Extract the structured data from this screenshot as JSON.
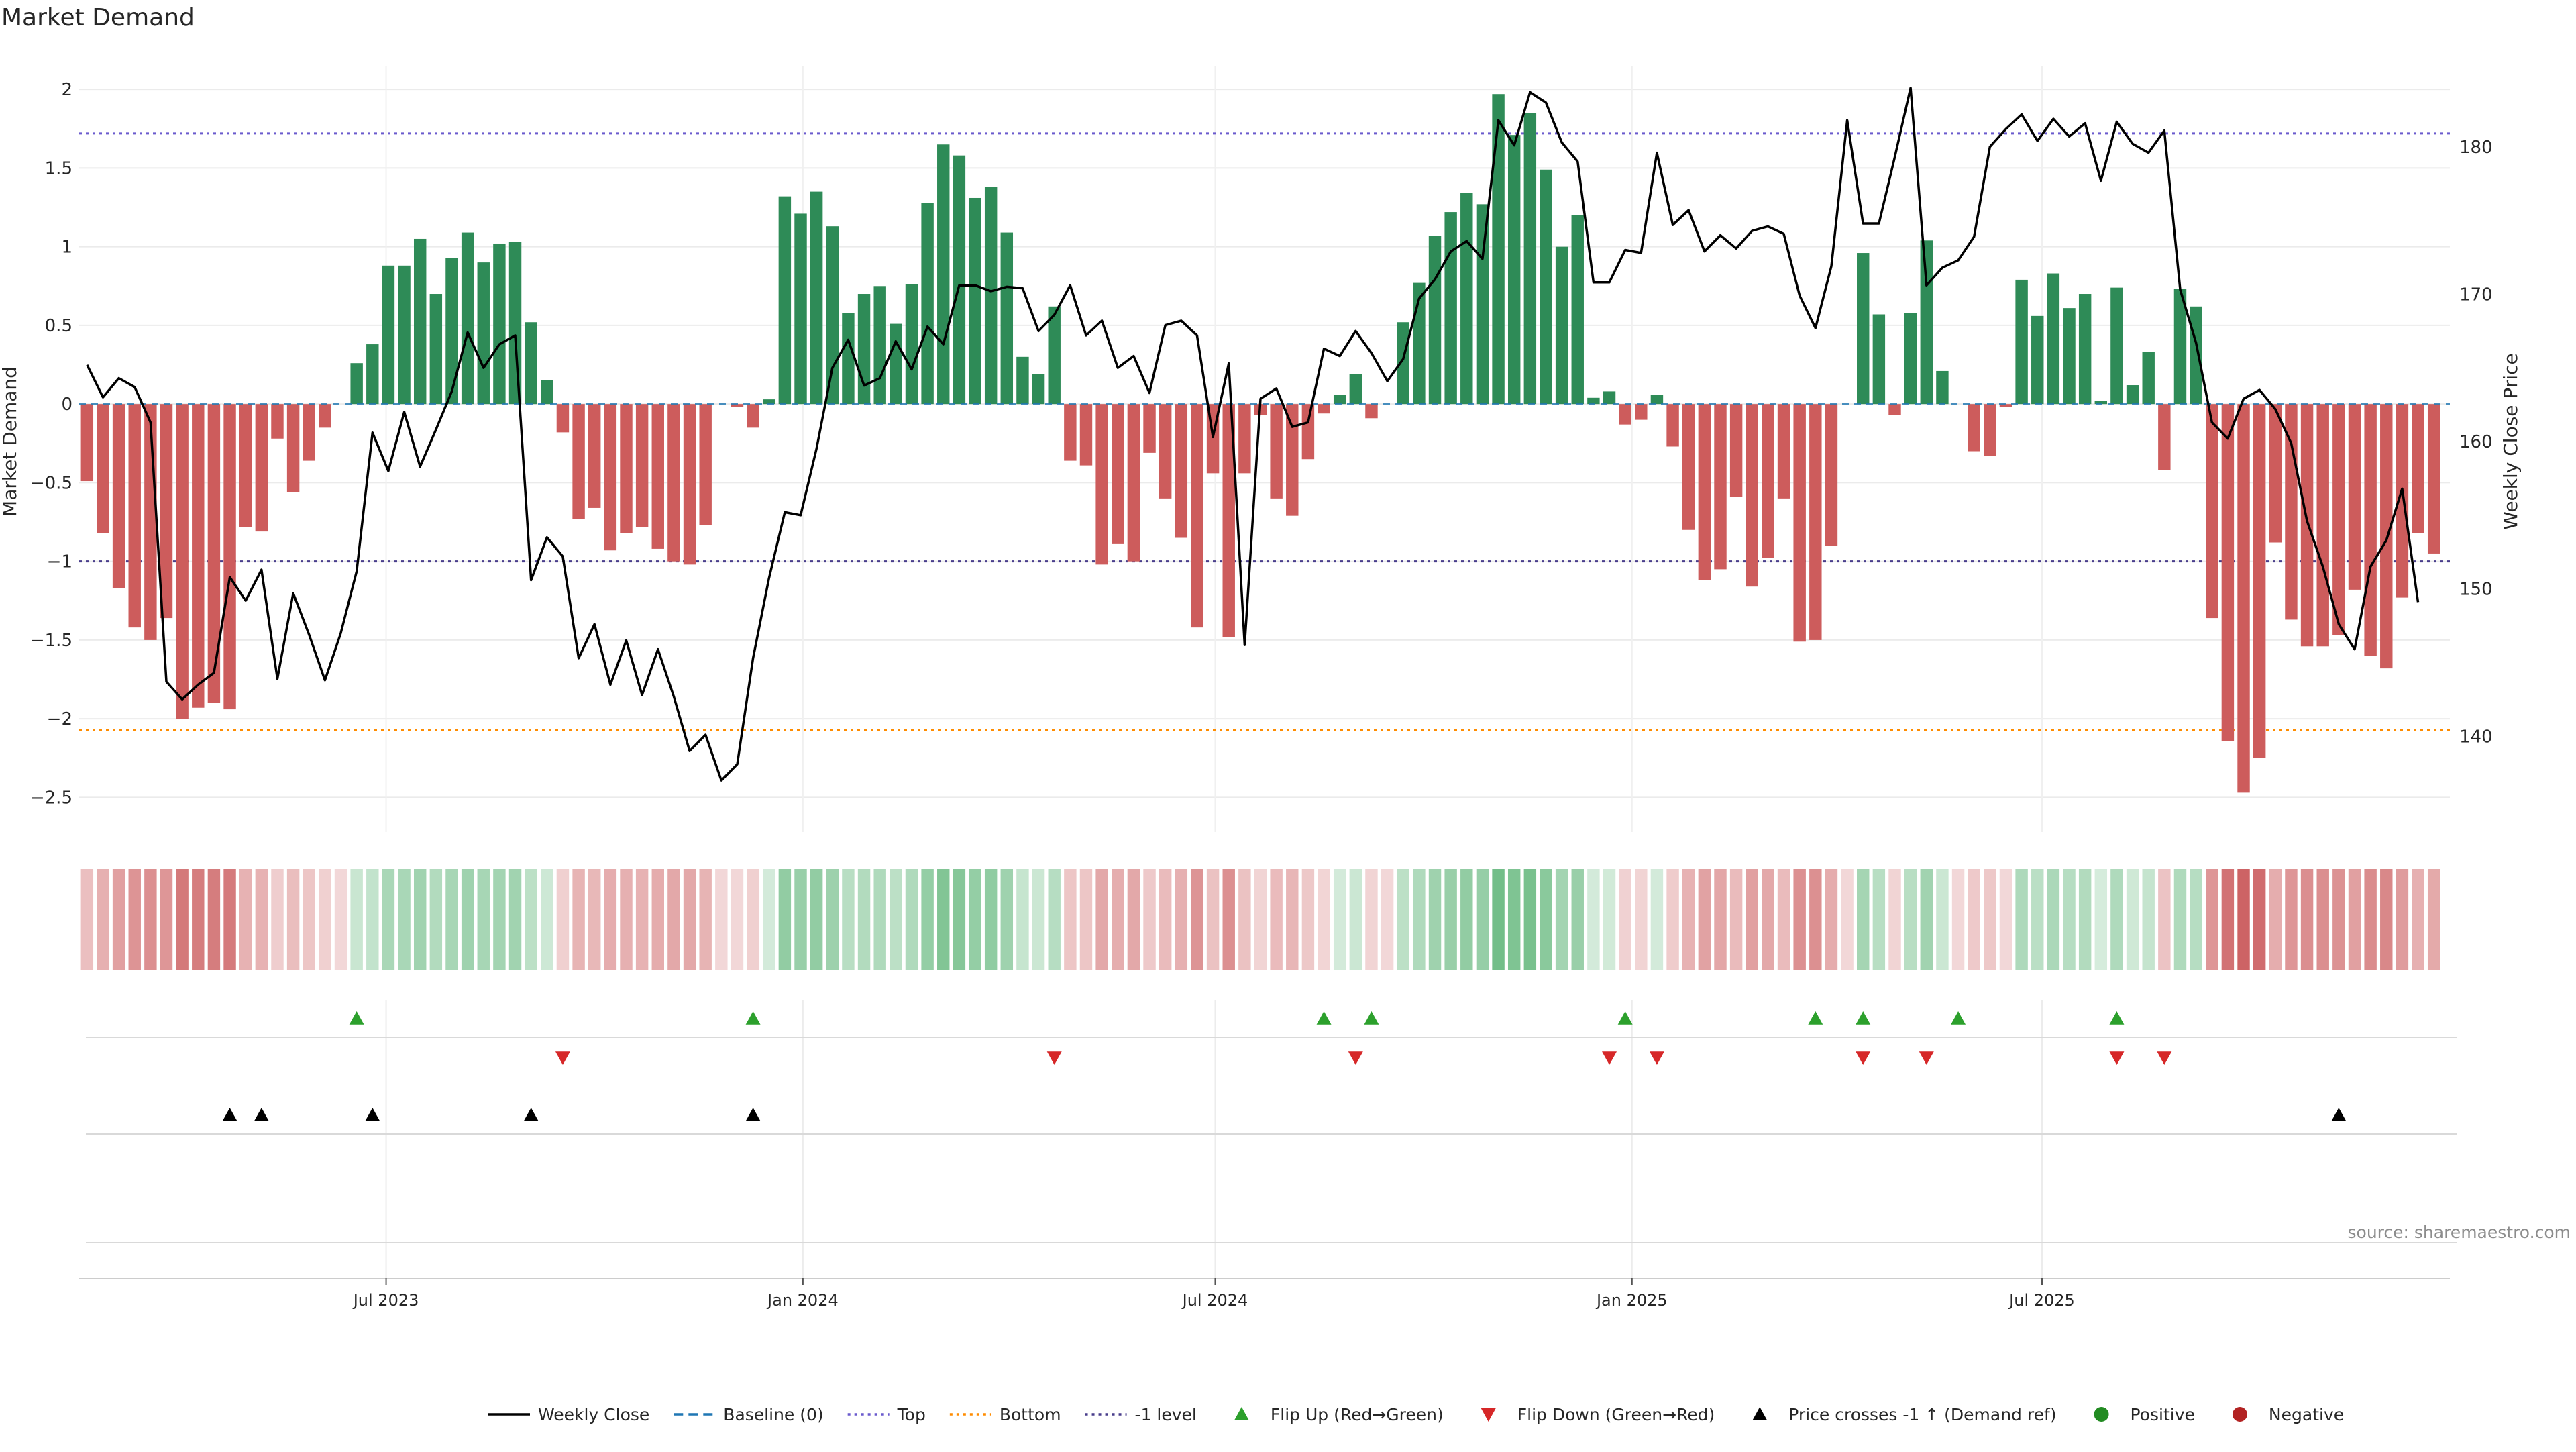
{
  "title": "Market Demand",
  "source": "source: sharemaestro.com",
  "colors": {
    "positive": "#2e8b57",
    "negative": "#cd5c5c",
    "price": "#000000",
    "baseline": "#1f77b4",
    "top": "#6a5acd",
    "bottom": "#ff8c00",
    "minus1": "#483d8b",
    "flip_up": "#2ca02c",
    "flip_down": "#d62728"
  },
  "chart_data": {
    "type": "bar",
    "x_axis": {
      "start": "2023-02-19",
      "interval": "weekly",
      "tick_labels": [
        "Jul 2023",
        "Jan 2024",
        "Jul 2024",
        "Jan 2025",
        "Jul 2025"
      ],
      "tick_dates": [
        "2023-07-01",
        "2024-01-01",
        "2024-07-01",
        "2025-01-01",
        "2025-07-01"
      ]
    },
    "left_axis": {
      "label": "Market Demand",
      "ylim": [
        -2.72,
        2.15
      ],
      "ticks": [
        2,
        1.5,
        1,
        0.5,
        0,
        -0.5,
        -1,
        -1.5,
        -2,
        -2.5
      ],
      "tick_labels": [
        "2",
        "1.5",
        "1",
        "0.5",
        "0",
        "−0.5",
        "−1",
        "−1.5",
        "−2",
        "−2.5"
      ]
    },
    "right_axis": {
      "label": "Weekly Close Price",
      "ylim": [
        133.5,
        185.5
      ],
      "ticks": [
        180,
        170,
        160,
        150,
        140
      ],
      "tick_labels": [
        "180",
        "170",
        "160",
        "150",
        "140"
      ]
    },
    "levels": {
      "top": 1.72,
      "bottom": -2.07,
      "minus1": -1.0,
      "baseline": 0
    },
    "series": [
      {
        "name": "Market Demand",
        "type": "bar",
        "values": [
          -0.49,
          -0.82,
          -1.17,
          -1.42,
          -1.5,
          -1.36,
          -2.0,
          -1.93,
          -1.9,
          -1.94,
          -0.78,
          -0.81,
          -0.22,
          -0.56,
          -0.36,
          -0.15,
          0.0,
          0.26,
          0.38,
          0.88,
          0.88,
          1.05,
          0.7,
          0.93,
          1.09,
          0.9,
          1.02,
          1.03,
          0.52,
          0.15,
          -0.18,
          -0.73,
          -0.66,
          -0.93,
          -0.82,
          -0.78,
          -0.92,
          -1.0,
          -1.02,
          -0.77,
          0.0,
          -0.02,
          -0.15,
          0.03,
          1.32,
          1.21,
          1.35,
          1.13,
          0.58,
          0.7,
          0.75,
          0.51,
          0.76,
          1.28,
          1.65,
          1.58,
          1.31,
          1.38,
          1.09,
          0.3,
          0.19,
          0.62,
          -0.36,
          -0.39,
          -1.02,
          -0.89,
          -1.0,
          -0.31,
          -0.6,
          -0.85,
          -1.42,
          -0.44,
          -1.48,
          -0.44,
          -0.07,
          -0.6,
          -0.71,
          -0.35,
          -0.06,
          0.06,
          0.19,
          -0.09,
          0.0,
          0.52,
          0.77,
          1.07,
          1.22,
          1.34,
          1.27,
          1.97,
          1.71,
          1.85,
          1.49,
          1.0,
          1.2,
          0.04,
          0.08,
          -0.13,
          -0.1,
          0.06,
          -0.27,
          -0.8,
          -1.12,
          -1.05,
          -0.59,
          -1.16,
          -0.98,
          -0.6,
          -1.51,
          -1.5,
          -0.9,
          0.0,
          0.96,
          0.57,
          -0.07,
          0.58,
          1.04,
          0.21,
          0.0,
          -0.3,
          -0.33,
          -0.02,
          0.79,
          0.56,
          0.83,
          0.61,
          0.7,
          0.02,
          0.74,
          0.12,
          0.33,
          -0.42,
          0.73,
          0.62,
          -1.36,
          -2.14,
          -2.47,
          -2.25,
          -0.88,
          -1.37,
          -1.54,
          -1.54,
          -1.47,
          -1.18,
          -1.6,
          -1.68,
          -1.23,
          -0.82,
          -0.95
        ]
      },
      {
        "name": "Weekly Close",
        "type": "line",
        "values": [
          165.2,
          163.0,
          164.3,
          163.7,
          161.3,
          143.7,
          142.5,
          143.5,
          144.3,
          150.8,
          149.2,
          151.3,
          143.9,
          149.7,
          146.9,
          143.8,
          147.0,
          151.2,
          160.6,
          158.0,
          162.0,
          158.3,
          160.8,
          163.4,
          167.4,
          165.0,
          166.6,
          167.2,
          150.6,
          153.5,
          152.2,
          145.3,
          147.6,
          143.5,
          146.5,
          142.8,
          145.9,
          142.7,
          139.0,
          140.1,
          137.0,
          138.1,
          145.3,
          150.7,
          155.2,
          155.0,
          159.5,
          165.0,
          166.9,
          163.8,
          164.3,
          166.8,
          164.9,
          167.8,
          166.6,
          170.6,
          170.6,
          170.2,
          170.5,
          170.4,
          167.5,
          168.6,
          170.6,
          167.2,
          168.2,
          165.0,
          165.8,
          163.3,
          167.9,
          168.2,
          167.2,
          160.3,
          165.3,
          146.2,
          162.9,
          163.6,
          161.0,
          161.3,
          166.3,
          165.8,
          167.5,
          166.0,
          164.1,
          165.6,
          169.7,
          171.0,
          172.9,
          173.6,
          172.4,
          181.8,
          180.1,
          183.7,
          183.0,
          180.3,
          179.0,
          170.8,
          170.8,
          173.0,
          172.8,
          179.6,
          174.7,
          175.7,
          172.9,
          174.0,
          173.1,
          174.3,
          174.6,
          174.1,
          169.9,
          167.7,
          171.9,
          181.8,
          174.8,
          174.8,
          179.3,
          184.0,
          170.6,
          171.8,
          172.3,
          173.9,
          180.0,
          181.2,
          182.2,
          180.4,
          181.9,
          180.7,
          181.6,
          177.7,
          181.7,
          180.2,
          179.6,
          181.1,
          170.3,
          166.7,
          161.3,
          160.2,
          162.9,
          163.5,
          162.2,
          159.9,
          154.6,
          151.5,
          147.6,
          145.9,
          151.5,
          153.3,
          156.8,
          149.1
        ]
      }
    ],
    "flip_up_indices": [
      17,
      42,
      78,
      81,
      97,
      109,
      112,
      118,
      128
    ],
    "flip_down_indices": [
      30,
      61,
      80,
      96,
      99,
      112,
      116,
      128,
      131
    ],
    "price_cross_indices": [
      9,
      11,
      18,
      28,
      42,
      142
    ],
    "color_band": {
      "label": "Market Demand shading",
      "rule": "green when value > 0, red when value < 0; opacity scales with magnitude"
    },
    "legend_position": "bottom-center",
    "grid": true
  },
  "legend": [
    {
      "label": "Weekly Close",
      "kind": "line-solid",
      "color": "#000000"
    },
    {
      "label": "Baseline (0)",
      "kind": "line-dash",
      "color": "#1f77b4"
    },
    {
      "label": "Top",
      "kind": "line-dot",
      "color": "#6a5acd"
    },
    {
      "label": "Bottom",
      "kind": "line-dot",
      "color": "#ff8c00"
    },
    {
      "label": "-1 level",
      "kind": "line-dot",
      "color": "#483d8b"
    },
    {
      "label": "Flip Up (Red→Green)",
      "kind": "tri-up",
      "color": "#2ca02c"
    },
    {
      "label": "Flip Down (Green→Red)",
      "kind": "tri-down",
      "color": "#d62728"
    },
    {
      "label": "Price crosses -1 ↑ (Demand ref)",
      "kind": "tri-up",
      "color": "#000000"
    },
    {
      "label": "Positive",
      "kind": "circle",
      "color": "#228b22"
    },
    {
      "label": "Negative",
      "kind": "circle",
      "color": "#b22222"
    }
  ]
}
